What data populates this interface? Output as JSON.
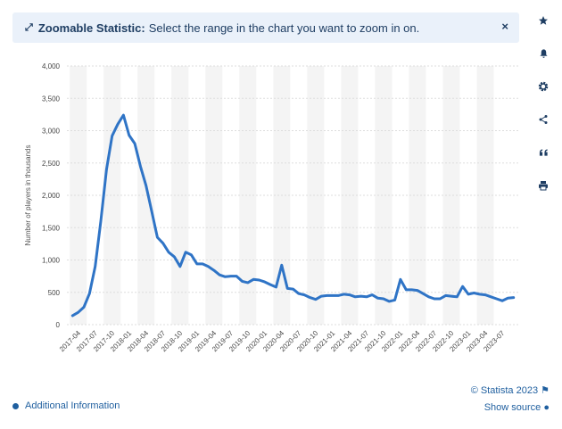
{
  "banner": {
    "title": "Zoomable Statistic:",
    "text": "Select the range in the chart you want to zoom in on.",
    "close": "×"
  },
  "sidebar": {
    "icons": [
      "star-icon",
      "bell-icon",
      "gear-icon",
      "share-icon",
      "quote-icon",
      "print-icon"
    ]
  },
  "footer": {
    "additional_info": "Additional Information",
    "credit": "© Statista 2023",
    "show_source": "Show source"
  },
  "colors": {
    "line": "#2f74c6",
    "banner_bg": "#eaf1fa",
    "link": "#1f5f9f"
  },
  "chart_data": {
    "type": "line",
    "ylabel": "Number of players in thousands",
    "ylim": [
      0,
      4000
    ],
    "yticks": [
      0,
      500,
      1000,
      1500,
      2000,
      2500,
      3000,
      3500,
      4000
    ],
    "ytick_labels": [
      "0",
      "500",
      "1,000",
      "1,500",
      "2,000",
      "2,500",
      "3,000",
      "3,500",
      "4,000"
    ],
    "xtick_labels": [
      "2017-04",
      "2017-07",
      "2017-10",
      "2018-01",
      "2018-04",
      "2018-07",
      "2018-10",
      "2019-01",
      "2019-04",
      "2019-07",
      "2019-10",
      "2020-01",
      "2020-04",
      "2020-07",
      "2020-10",
      "2021-01",
      "2021-04",
      "2021-07",
      "2021-10",
      "2022-01",
      "2022-04",
      "2022-07",
      "2022-10",
      "2023-01",
      "2023-04",
      "2023-07"
    ],
    "grid": true,
    "x": [
      "2017-03",
      "2017-04",
      "2017-05",
      "2017-06",
      "2017-07",
      "2017-08",
      "2017-09",
      "2017-10",
      "2017-11",
      "2017-12",
      "2018-01",
      "2018-02",
      "2018-03",
      "2018-04",
      "2018-05",
      "2018-06",
      "2018-07",
      "2018-08",
      "2018-09",
      "2018-10",
      "2018-11",
      "2018-12",
      "2019-01",
      "2019-02",
      "2019-03",
      "2019-04",
      "2019-05",
      "2019-06",
      "2019-07",
      "2019-08",
      "2019-09",
      "2019-10",
      "2019-11",
      "2019-12",
      "2020-01",
      "2020-02",
      "2020-03",
      "2020-04",
      "2020-05",
      "2020-06",
      "2020-07",
      "2020-08",
      "2020-09",
      "2020-10",
      "2020-11",
      "2020-12",
      "2021-01",
      "2021-02",
      "2021-03",
      "2021-04",
      "2021-05",
      "2021-06",
      "2021-07",
      "2021-08",
      "2021-09",
      "2021-10",
      "2021-11",
      "2021-12",
      "2022-01",
      "2022-02",
      "2022-03",
      "2022-04",
      "2022-05",
      "2022-06",
      "2022-07",
      "2022-08",
      "2022-09",
      "2022-10",
      "2022-11",
      "2022-12",
      "2023-01",
      "2023-02",
      "2023-03",
      "2023-04",
      "2023-05",
      "2023-06",
      "2023-07",
      "2023-08",
      "2023-09"
    ],
    "series": [
      {
        "values": [
          140,
          190,
          270,
          480,
          900,
          1600,
          2400,
          2920,
          3100,
          3240,
          2930,
          2800,
          2450,
          2150,
          1750,
          1350,
          1260,
          1120,
          1050,
          900,
          1120,
          1080,
          940,
          940,
          900,
          840,
          770,
          740,
          750,
          750,
          670,
          650,
          700,
          690,
          660,
          620,
          580,
          920,
          560,
          550,
          480,
          460,
          420,
          390,
          440,
          450,
          450,
          450,
          470,
          460,
          430,
          440,
          430,
          460,
          410,
          400,
          360,
          380,
          700,
          540,
          540,
          530,
          480,
          430,
          400,
          400,
          450,
          440,
          430,
          590,
          470,
          490,
          470,
          460,
          430,
          400,
          370,
          410,
          420
        ]
      }
    ]
  }
}
